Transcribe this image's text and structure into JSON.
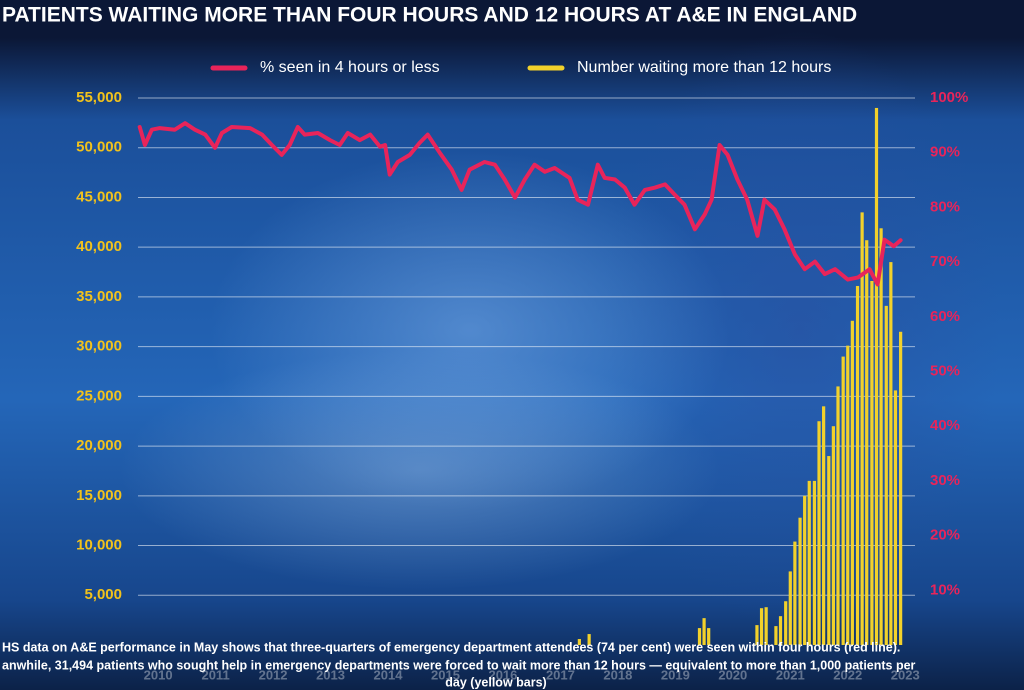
{
  "chart_data": {
    "type": "combo",
    "title": "PATIENTS WAITING MORE THAN FOUR HOURS AND 12 HOURS AT A&E IN ENGLAND",
    "caption": [
      "HS data on A&E performance in May shows that three-quarters of emergency department attendees (74 per cent) were seen within four hours (red line).",
      "anwhile, 31,494 patients who sought help in emergency departments were forced to wait more than 12 hours — equivalent to more than 1,000 patients per",
      "day (yellow bars)"
    ],
    "xlim": [
      2010.15,
      2023.67
    ],
    "xticks": [
      {
        "value": 2010.5,
        "label": "2010"
      },
      {
        "value": 2011.5,
        "label": "2011"
      },
      {
        "value": 2012.5,
        "label": "2012"
      },
      {
        "value": 2013.5,
        "label": "2013"
      },
      {
        "value": 2014.5,
        "label": "2014"
      },
      {
        "value": 2015.5,
        "label": "2015"
      },
      {
        "value": 2016.5,
        "label": "2016"
      },
      {
        "value": 2017.5,
        "label": "2017"
      },
      {
        "value": 2018.5,
        "label": "2018"
      },
      {
        "value": 2019.5,
        "label": "2019"
      },
      {
        "value": 2020.5,
        "label": "2020"
      },
      {
        "value": 2021.5,
        "label": "2021"
      },
      {
        "value": 2022.5,
        "label": "2022"
      },
      {
        "value": 2023.5,
        "label": "2023"
      }
    ],
    "ylim": [
      0,
      55000
    ],
    "yticks": [
      {
        "value": 5000,
        "label": "5,000"
      },
      {
        "value": 10000,
        "label": "10,000"
      },
      {
        "value": 15000,
        "label": "15,000"
      },
      {
        "value": 20000,
        "label": "20,000"
      },
      {
        "value": 25000,
        "label": "25,000"
      },
      {
        "value": 30000,
        "label": "30,000"
      },
      {
        "value": 35000,
        "label": "35,000"
      },
      {
        "value": 40000,
        "label": "40,000"
      },
      {
        "value": 45000,
        "label": "45,000"
      },
      {
        "value": 50000,
        "label": "50,000"
      },
      {
        "value": 55000,
        "label": "55,000"
      }
    ],
    "y2lim": [
      0,
      100
    ],
    "y2ticks": [
      {
        "value": 10,
        "label": "10%"
      },
      {
        "value": 20,
        "label": "20%"
      },
      {
        "value": 30,
        "label": "30%"
      },
      {
        "value": 40,
        "label": "40%"
      },
      {
        "value": 50,
        "label": "50%"
      },
      {
        "value": 60,
        "label": "60%"
      },
      {
        "value": 70,
        "label": "70%"
      },
      {
        "value": 80,
        "label": "80%"
      },
      {
        "value": 90,
        "label": "90%"
      },
      {
        "value": 100,
        "label": "100%"
      }
    ],
    "grid": true,
    "series": [
      {
        "name": "% seen in 4 hours or less",
        "type": "line",
        "axis": "y2",
        "color": "#e8245a",
        "x": [
          2010.18,
          2010.27,
          2010.39,
          2010.53,
          2010.79,
          2010.97,
          2011.14,
          2011.32,
          2011.49,
          2011.61,
          2011.78,
          2012.1,
          2012.31,
          2012.48,
          2012.65,
          2012.79,
          2012.93,
          2013.05,
          2013.28,
          2013.49,
          2013.66,
          2013.8,
          2014.01,
          2014.19,
          2014.36,
          2014.45,
          2014.53,
          2014.67,
          2014.88,
          2015.05,
          2015.19,
          2015.4,
          2015.61,
          2015.78,
          2015.92,
          2016.18,
          2016.36,
          2016.53,
          2016.71,
          2016.88,
          2017.05,
          2017.23,
          2017.4,
          2017.66,
          2017.8,
          2017.98,
          2018.15,
          2018.27,
          2018.45,
          2018.62,
          2018.79,
          2018.97,
          2019.14,
          2019.32,
          2019.49,
          2019.66,
          2019.84,
          2020.01,
          2020.13,
          2020.27,
          2020.41,
          2020.58,
          2020.75,
          2020.93,
          2021.05,
          2021.23,
          2021.4,
          2021.58,
          2021.75,
          2021.93,
          2022.1,
          2022.28,
          2022.5,
          2022.68,
          2022.88,
          2023.02,
          2023.14,
          2023.3,
          2023.42
        ],
        "values": [
          94.7,
          91.4,
          94.2,
          94.5,
          94.2,
          95.4,
          94.2,
          93.3,
          90.9,
          93.6,
          94.7,
          94.5,
          93.3,
          91.4,
          89.6,
          91.4,
          94.7,
          93.3,
          93.6,
          92.3,
          91.4,
          93.6,
          92.3,
          93.3,
          91.1,
          91.4,
          86.0,
          88.3,
          89.6,
          91.8,
          93.3,
          90.0,
          86.9,
          83.2,
          86.9,
          88.3,
          87.8,
          85.1,
          81.8,
          85.1,
          87.8,
          86.5,
          87.2,
          85.4,
          81.4,
          80.5,
          87.8,
          85.4,
          85.1,
          83.6,
          80.5,
          83.2,
          83.6,
          84.2,
          82.3,
          80.5,
          76.0,
          78.7,
          81.4,
          91.4,
          89.6,
          85.1,
          81.4,
          74.8,
          81.4,
          79.6,
          76.0,
          71.4,
          68.7,
          70.1,
          67.8,
          68.7,
          66.8,
          67.2,
          68.7,
          65.9,
          74.1,
          72.9,
          74
        ]
      },
      {
        "name": "Number waiting more than 12 hours",
        "type": "bar",
        "axis": "y",
        "color": "#f2d12b",
        "x": [
          2017.83,
          2018.0,
          2019.92,
          2020.0,
          2020.08,
          2020.92,
          2021.0,
          2021.08,
          2021.25,
          2021.33,
          2021.42,
          2021.5,
          2021.58,
          2021.67,
          2021.75,
          2021.83,
          2021.92,
          2022.0,
          2022.08,
          2022.17,
          2022.25,
          2022.33,
          2022.42,
          2022.5,
          2022.58,
          2022.67,
          2022.75,
          2022.83,
          2022.92,
          2023.0,
          2023.08,
          2023.17,
          2023.25,
          2023.33,
          2023.42
        ],
        "values": [
          600,
          1100,
          1700,
          2700,
          1700,
          2000,
          3700,
          3800,
          1900,
          2900,
          4400,
          7400,
          10400,
          12800,
          15000,
          16500,
          16500,
          22500,
          24000,
          19000,
          22000,
          26000,
          29000,
          30100,
          32600,
          36100,
          43500,
          40700,
          36600,
          54000,
          41900,
          34100,
          38500,
          25600,
          31494
        ]
      }
    ]
  }
}
